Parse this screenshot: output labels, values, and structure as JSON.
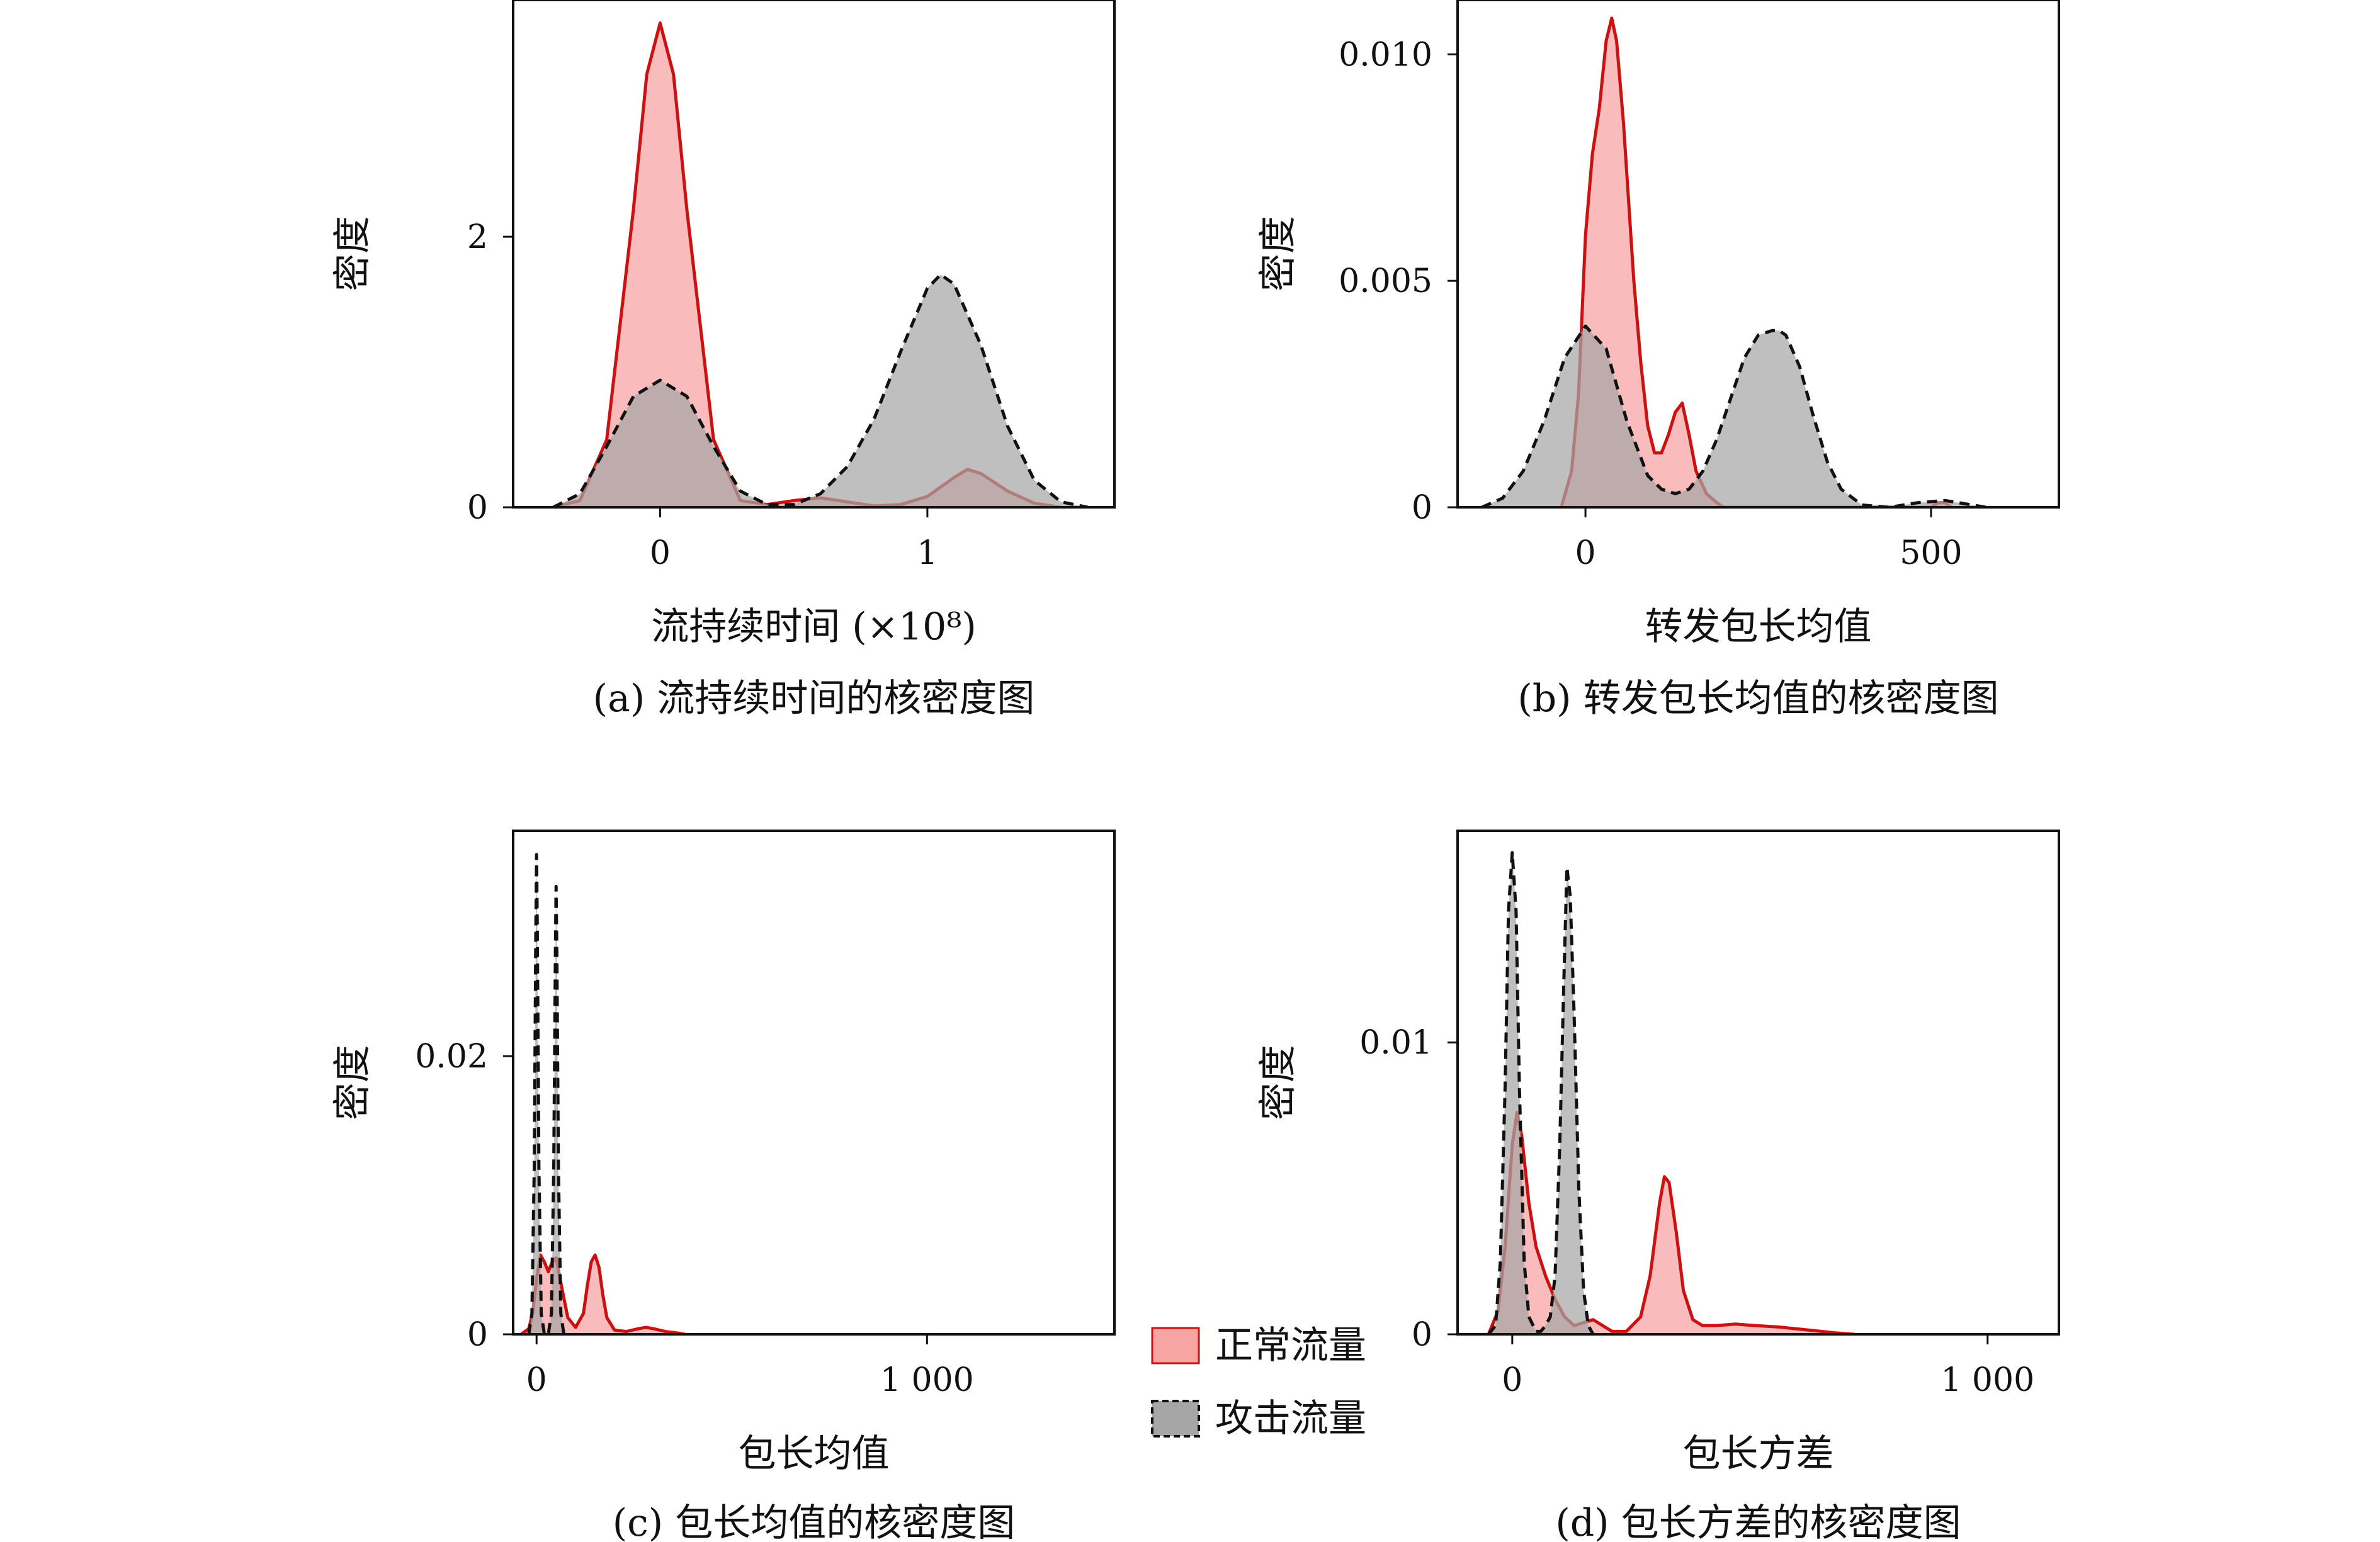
{
  "colors": {
    "normal_line": "#cc1111",
    "normal_fill": "#f7a4a4",
    "attack_line": "#111111",
    "attack_fill": "#a6a6a6"
  },
  "legend": {
    "normal": "正常流量",
    "attack": "攻击流量"
  },
  "chart_data": [
    {
      "type": "area",
      "caption": "(a) 流持续时间的核密度图",
      "xlabel": "流持续时间 (×10⁸)",
      "ylabel": "密度",
      "xlim": [
        -0.55,
        1.7
      ],
      "ylim": [
        0,
        3.75
      ],
      "xticks": [
        0,
        1
      ],
      "xtick_labels": [
        "0",
        "1"
      ],
      "yticks": [
        0,
        2
      ],
      "ytick_labels": [
        "0",
        "2"
      ],
      "series": [
        {
          "key": "normal",
          "x": [
            -0.4,
            -0.3,
            -0.2,
            -0.1,
            -0.05,
            0,
            0.05,
            0.1,
            0.2,
            0.3,
            0.4,
            0.5,
            0.6,
            0.7,
            0.8,
            0.9,
            1.0,
            1.1,
            1.15,
            1.2,
            1.3,
            1.4,
            1.5
          ],
          "y": [
            0,
            0.05,
            0.5,
            2.2,
            3.2,
            3.58,
            3.2,
            2.2,
            0.5,
            0.05,
            0.02,
            0.05,
            0.07,
            0.04,
            0.01,
            0.02,
            0.08,
            0.22,
            0.28,
            0.25,
            0.12,
            0.03,
            0
          ]
        },
        {
          "key": "attack",
          "x": [
            -0.4,
            -0.3,
            -0.2,
            -0.1,
            0,
            0.1,
            0.2,
            0.3,
            0.4,
            0.5,
            0.6,
            0.7,
            0.8,
            0.9,
            1.0,
            1.05,
            1.1,
            1.2,
            1.3,
            1.4,
            1.5,
            1.6
          ],
          "y": [
            0,
            0.1,
            0.45,
            0.82,
            0.94,
            0.82,
            0.45,
            0.12,
            0.02,
            0.02,
            0.1,
            0.3,
            0.65,
            1.15,
            1.62,
            1.72,
            1.65,
            1.2,
            0.6,
            0.2,
            0.04,
            0
          ]
        }
      ]
    },
    {
      "type": "area",
      "caption": "(b) 转发包长均值的核密度图",
      "xlabel": "转发包长均值",
      "ylabel": "密度",
      "xlim": [
        -185,
        685
      ],
      "ylim": [
        0,
        0.0112
      ],
      "xticks": [
        0,
        500
      ],
      "xtick_labels": [
        "0",
        "500"
      ],
      "yticks": [
        0,
        0.005,
        0.01
      ],
      "ytick_labels": [
        "0",
        "0.005",
        "0.010"
      ],
      "series": [
        {
          "key": "normal",
          "x": [
            -35,
            -20,
            -10,
            0,
            10,
            20,
            30,
            38,
            45,
            55,
            70,
            80,
            90,
            100,
            110,
            120,
            130,
            140,
            150,
            160,
            175,
            190,
            200,
            220,
            500,
            510,
            520,
            530
          ],
          "y": [
            0,
            0.0008,
            0.0025,
            0.006,
            0.0078,
            0.0088,
            0.0103,
            0.0108,
            0.0103,
            0.0085,
            0.005,
            0.0032,
            0.0018,
            0.0012,
            0.0012,
            0.0016,
            0.0021,
            0.0023,
            0.0016,
            0.0008,
            0.0003,
            0.0001,
            0,
            0,
            0,
            0.0001,
            0.0001,
            0
          ]
        },
        {
          "key": "attack",
          "x": [
            -150,
            -120,
            -90,
            -60,
            -30,
            0,
            30,
            60,
            90,
            110,
            130,
            150,
            170,
            190,
            210,
            230,
            250,
            270,
            280,
            290,
            310,
            330,
            350,
            370,
            400,
            440,
            480,
            520,
            560,
            580
          ],
          "y": [
            0,
            0.0002,
            0.0008,
            0.0019,
            0.0033,
            0.004,
            0.0035,
            0.0019,
            0.0007,
            0.0004,
            0.0003,
            0.0004,
            0.0008,
            0.0015,
            0.0024,
            0.0033,
            0.0038,
            0.0039,
            0.0039,
            0.0038,
            0.0031,
            0.002,
            0.001,
            0.0004,
            5e-05,
            0,
            0.0001,
            0.00015,
            5e-05,
            0
          ]
        }
      ]
    },
    {
      "type": "area",
      "caption": "(c) 包长均值的核密度图",
      "xlabel": "包长均值",
      "ylabel": "密度",
      "xlim": [
        -60,
        1480
      ],
      "ylim": [
        0,
        0.0362
      ],
      "xticks": [
        0,
        1000
      ],
      "xtick_labels": [
        "0",
        "1 000"
      ],
      "yticks": [
        0,
        0.02
      ],
      "ytick_labels": [
        "0",
        "0.02"
      ],
      "series": [
        {
          "key": "normal",
          "x": [
            -40,
            -20,
            -10,
            0,
            10,
            20,
            30,
            40,
            50,
            60,
            80,
            100,
            120,
            130,
            140,
            150,
            160,
            170,
            180,
            200,
            230,
            260,
            280,
            300,
            330,
            360,
            380
          ],
          "y": [
            0,
            0.0004,
            0.0015,
            0.004,
            0.0057,
            0.0052,
            0.0045,
            0.0052,
            0.0055,
            0.004,
            0.0012,
            0.0005,
            0.0015,
            0.0035,
            0.0052,
            0.0057,
            0.0048,
            0.0028,
            0.0012,
            0.0003,
            0.0002,
            0.0004,
            0.0005,
            0.0004,
            0.0002,
            0.0001,
            0
          ]
        },
        {
          "key": "attack",
          "x": [
            -20,
            -12,
            -6,
            -2,
            0,
            2,
            6,
            12,
            20,
            30,
            38,
            44,
            48,
            50,
            52,
            56,
            62,
            70
          ],
          "y": [
            0,
            0.0015,
            0.012,
            0.029,
            0.0345,
            0.029,
            0.012,
            0.0015,
            0,
            0,
            0.0015,
            0.012,
            0.027,
            0.0322,
            0.027,
            0.012,
            0.0015,
            0
          ]
        }
      ]
    },
    {
      "type": "area",
      "caption": "(d) 包长方差的核密度图",
      "xlabel": "包长方差",
      "ylabel": "密度",
      "xlim": [
        -115,
        1150
      ],
      "ylim": [
        0,
        0.01725
      ],
      "xticks": [
        0,
        1000
      ],
      "xtick_labels": [
        "0",
        "1 000"
      ],
      "yticks": [
        0,
        0.01
      ],
      "ytick_labels": [
        "0",
        "0.01"
      ],
      "series": [
        {
          "key": "normal",
          "x": [
            -50,
            -30,
            -15,
            0,
            10,
            20,
            35,
            50,
            70,
            90,
            110,
            130,
            150,
            170,
            190,
            210,
            240,
            270,
            290,
            310,
            320,
            330,
            345,
            360,
            380,
            400,
            430,
            470,
            510,
            560,
            620,
            680,
            720
          ],
          "y": [
            0,
            0.0008,
            0.003,
            0.0065,
            0.0076,
            0.0068,
            0.0045,
            0.003,
            0.002,
            0.0012,
            0.0006,
            0.0003,
            0.0004,
            0.0005,
            0.0003,
            0.0001,
            0.0001,
            0.0006,
            0.002,
            0.0045,
            0.0054,
            0.0052,
            0.0035,
            0.0015,
            0.0005,
            0.0003,
            0.0003,
            0.00035,
            0.0003,
            0.00025,
            0.00015,
            5e-05,
            0
          ]
        },
        {
          "key": "attack",
          "x": [
            -50,
            -35,
            -25,
            -15,
            -8,
            0,
            8,
            15,
            25,
            35,
            50,
            60,
            70,
            80,
            90,
            100,
            108,
            115,
            122,
            130,
            140,
            150,
            160,
            170
          ],
          "y": [
            0,
            0.0003,
            0.0025,
            0.0085,
            0.0145,
            0.0165,
            0.0145,
            0.0085,
            0.0025,
            0.0006,
            0.0001,
            0.0001,
            0.0003,
            0.0006,
            0.002,
            0.0065,
            0.0118,
            0.016,
            0.015,
            0.011,
            0.005,
            0.0015,
            0.0003,
            0
          ]
        }
      ]
    }
  ]
}
